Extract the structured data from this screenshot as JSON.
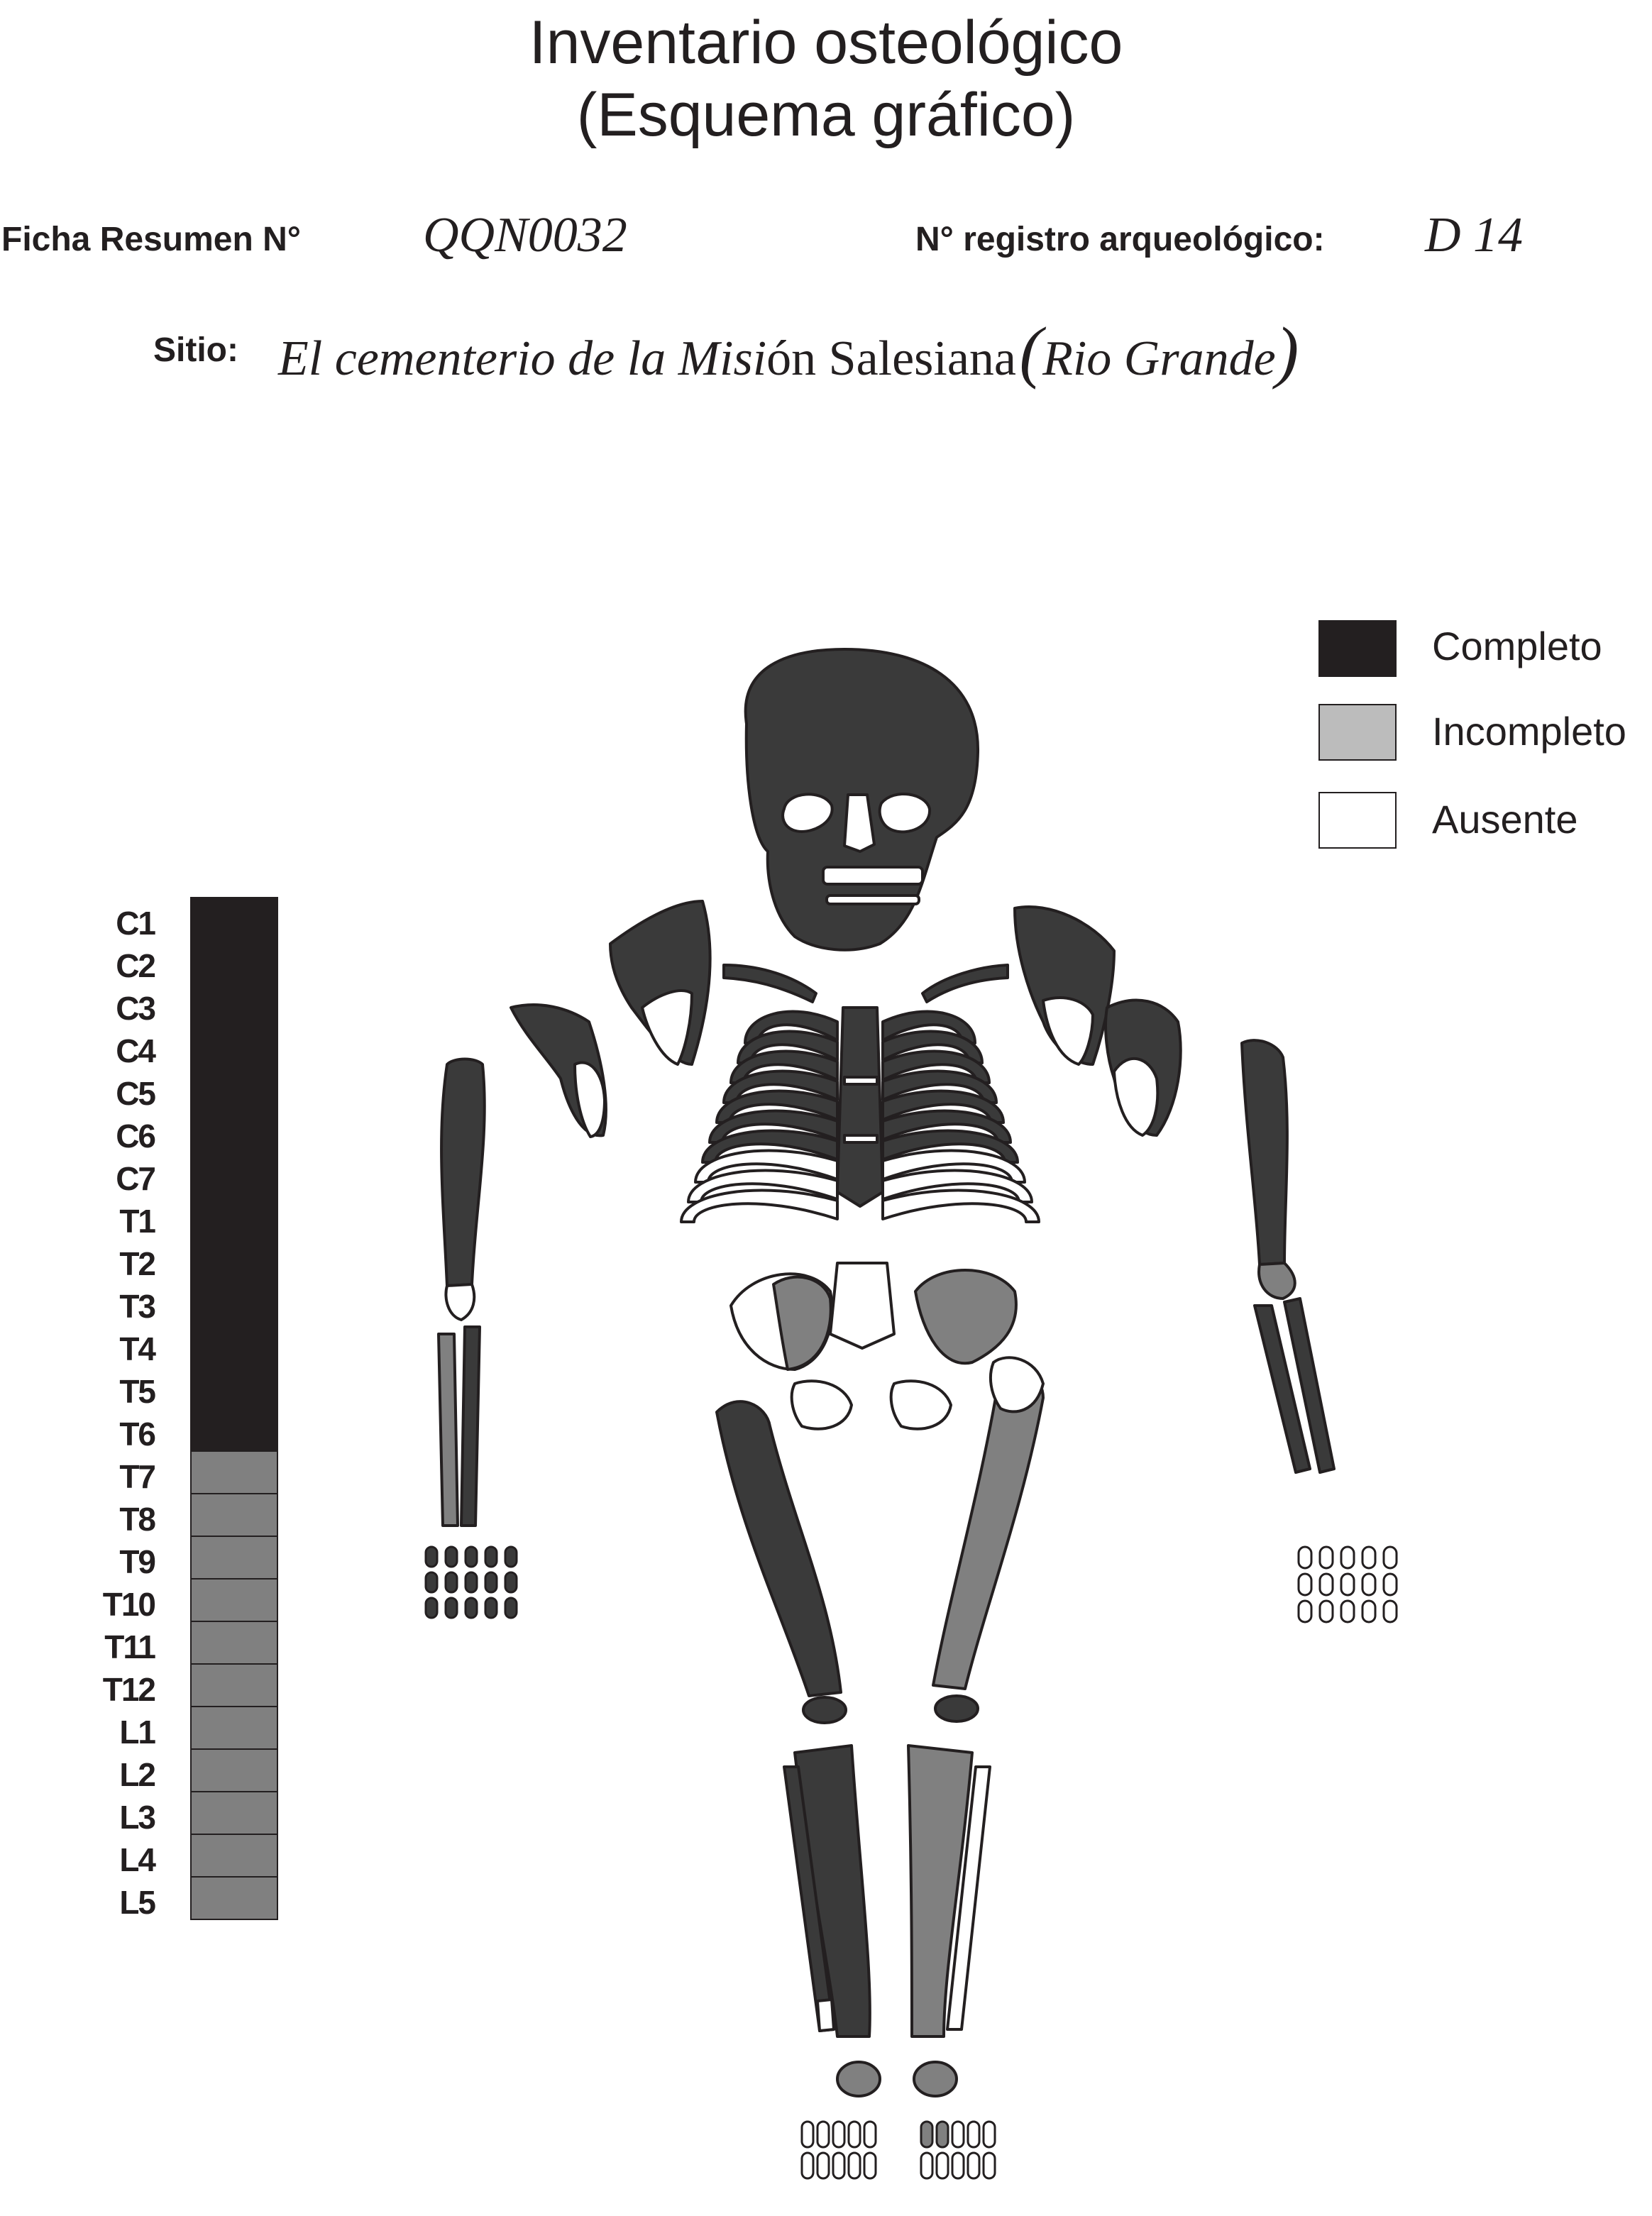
{
  "header": {
    "title_line1": "Inventario osteológico",
    "title_line2": "(Esquema gráfico)"
  },
  "record": {
    "ficha_label": "Ficha Resumen N°",
    "ficha_value": "QQN0032",
    "registro_label": "N° registro arqueológico:",
    "registro_value": "D 14",
    "sitio_label": "Sitio:",
    "sitio_value_italic": "El cementerio de la Misi",
    "sitio_value_roman": "ón Salesiana",
    "sitio_paren_open": "(",
    "sitio_paren_text": "Rio Grande",
    "sitio_paren_close": ")"
  },
  "legend": [
    {
      "label": "Completo",
      "color": "#231f20"
    },
    {
      "label": "Incompleto",
      "color": "#bcbcbc"
    },
    {
      "label": "Ausente",
      "color": "#ffffff"
    }
  ],
  "colors": {
    "complete": "#3a3a3a",
    "complete_dark": "#231f20",
    "incomplete": "#808080",
    "incomplete_light": "#a9a9a9",
    "absent": "#ffffff"
  },
  "vertebrae": [
    {
      "label": "C1",
      "status": "complete"
    },
    {
      "label": "C2",
      "status": "complete"
    },
    {
      "label": "C3",
      "status": "complete"
    },
    {
      "label": "C4",
      "status": "complete"
    },
    {
      "label": "C5",
      "status": "complete"
    },
    {
      "label": "C6",
      "status": "complete"
    },
    {
      "label": "C7",
      "status": "complete"
    },
    {
      "label": "T1",
      "status": "complete"
    },
    {
      "label": "T2",
      "status": "complete"
    },
    {
      "label": "T3",
      "status": "complete"
    },
    {
      "label": "T4",
      "status": "complete"
    },
    {
      "label": "T5",
      "status": "complete"
    },
    {
      "label": "T6",
      "status": "complete"
    },
    {
      "label": "T7",
      "status": "incomplete"
    },
    {
      "label": "T8",
      "status": "incomplete"
    },
    {
      "label": "T9",
      "status": "incomplete"
    },
    {
      "label": "T10",
      "status": "incomplete"
    },
    {
      "label": "T11",
      "status": "incomplete"
    },
    {
      "label": "T12",
      "status": "incomplete"
    },
    {
      "label": "L1",
      "status": "incomplete"
    },
    {
      "label": "L2",
      "status": "incomplete"
    },
    {
      "label": "L3",
      "status": "incomplete"
    },
    {
      "label": "L4",
      "status": "incomplete"
    },
    {
      "label": "L5",
      "status": "incomplete"
    }
  ]
}
